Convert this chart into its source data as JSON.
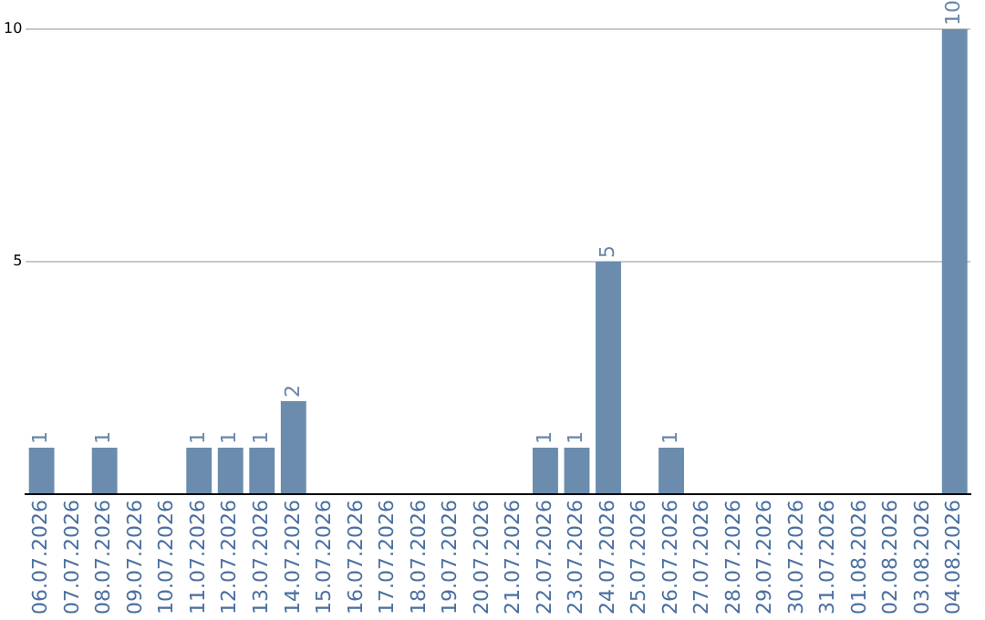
{
  "chart_data": {
    "type": "bar",
    "categories": [
      "06.07.2026",
      "07.07.2026",
      "08.07.2026",
      "09.07.2026",
      "10.07.2026",
      "11.07.2026",
      "12.07.2026",
      "13.07.2026",
      "14.07.2026",
      "15.07.2026",
      "16.07.2026",
      "17.07.2026",
      "18.07.2026",
      "19.07.2026",
      "20.07.2026",
      "21.07.2026",
      "22.07.2026",
      "23.07.2026",
      "24.07.2026",
      "25.07.2026",
      "26.07.2026",
      "27.07.2026",
      "28.07.2026",
      "29.07.2026",
      "30.07.2026",
      "31.07.2026",
      "01.08.2026",
      "02.08.2026",
      "03.08.2026",
      "04.08.2026"
    ],
    "values": [
      1,
      0,
      1,
      0,
      0,
      1,
      1,
      1,
      2,
      0,
      0,
      0,
      0,
      0,
      0,
      0,
      1,
      1,
      5,
      0,
      1,
      0,
      0,
      0,
      0,
      0,
      0,
      0,
      0,
      10
    ],
    "value_labels": [
      "1",
      null,
      "1",
      null,
      null,
      "1",
      "1",
      "1",
      "2",
      null,
      null,
      null,
      null,
      null,
      null,
      null,
      "1",
      "1",
      "5",
      null,
      "1",
      null,
      null,
      null,
      null,
      null,
      null,
      null,
      null,
      "10"
    ],
    "color": "#6b8cad",
    "ylim": [
      0,
      10
    ],
    "yticks": [
      {
        "value": 0,
        "label": null
      },
      5,
      10
    ],
    "grid": "y"
  }
}
